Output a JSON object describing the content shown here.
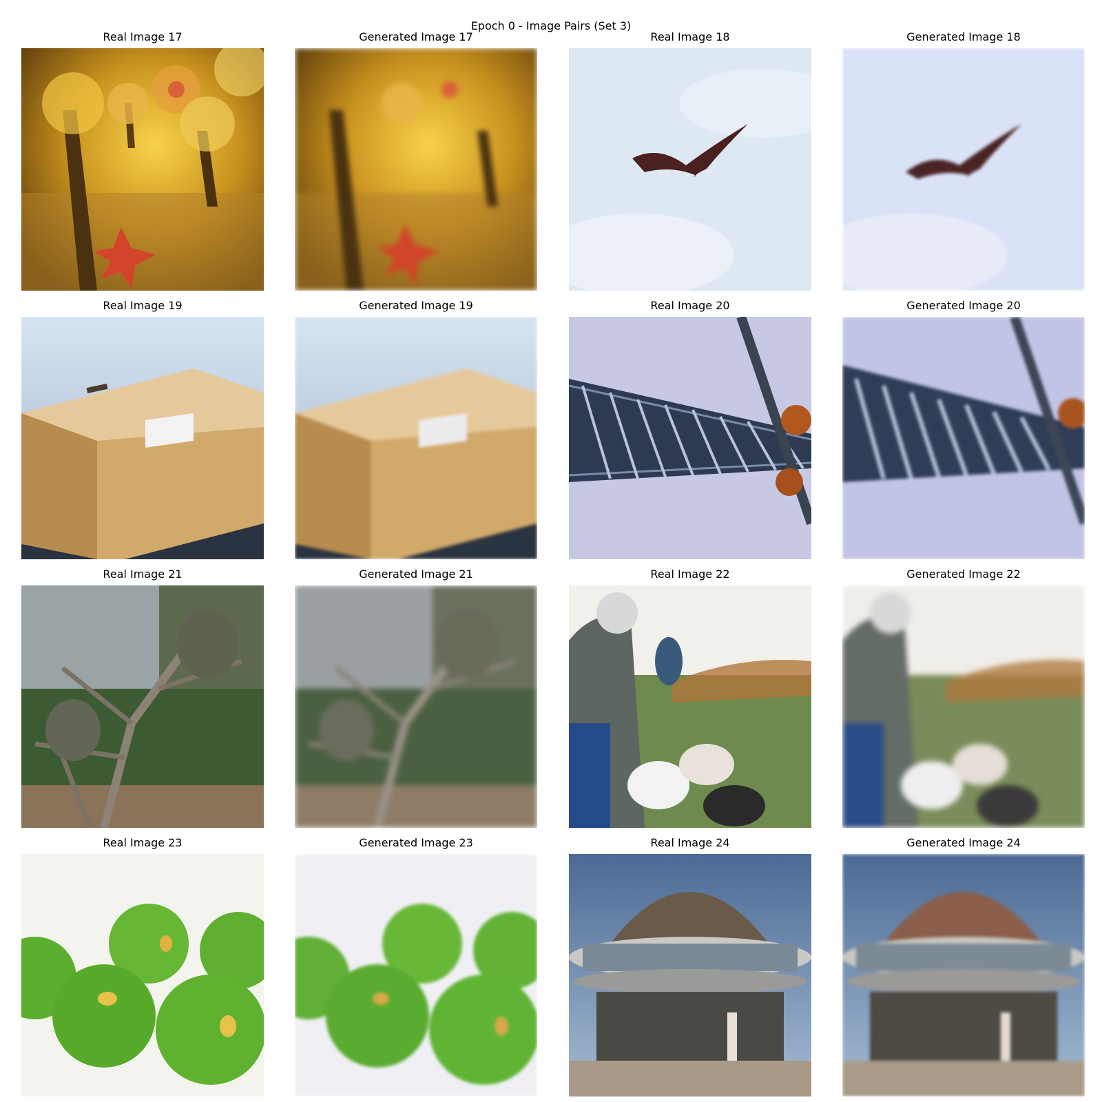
{
  "figure": {
    "title": "Epoch 0 - Image Pairs (Set 3)"
  },
  "panels": [
    {
      "title": "Real Image 17",
      "kind": "real",
      "subject": "sea-anemones-starfish"
    },
    {
      "title": "Generated Image 17",
      "kind": "generated",
      "subject": "sea-anemones-starfish"
    },
    {
      "title": "Real Image 18",
      "kind": "real",
      "subject": "bird-in-sky"
    },
    {
      "title": "Generated Image 18",
      "kind": "generated",
      "subject": "bird-in-sky"
    },
    {
      "title": "Real Image 19",
      "kind": "real",
      "subject": "cardboard-box"
    },
    {
      "title": "Generated Image 19",
      "kind": "generated",
      "subject": "cardboard-box"
    },
    {
      "title": "Real Image 20",
      "kind": "real",
      "subject": "crane-boom"
    },
    {
      "title": "Generated Image 20",
      "kind": "generated",
      "subject": "crane-boom"
    },
    {
      "title": "Real Image 21",
      "kind": "real",
      "subject": "porcupines-in-tree"
    },
    {
      "title": "Generated Image 21",
      "kind": "generated",
      "subject": "porcupines-in-tree"
    },
    {
      "title": "Real Image 22",
      "kind": "real",
      "subject": "people-with-dogs-in-park"
    },
    {
      "title": "Generated Image 22",
      "kind": "generated",
      "subject": "people-with-dogs-in-park"
    },
    {
      "title": "Real Image 23",
      "kind": "real",
      "subject": "green-apples"
    },
    {
      "title": "Generated Image 23",
      "kind": "generated",
      "subject": "green-apples"
    },
    {
      "title": "Real Image 24",
      "kind": "real",
      "subject": "dome-building"
    },
    {
      "title": "Generated Image 24",
      "kind": "generated",
      "subject": "dome-building"
    }
  ]
}
